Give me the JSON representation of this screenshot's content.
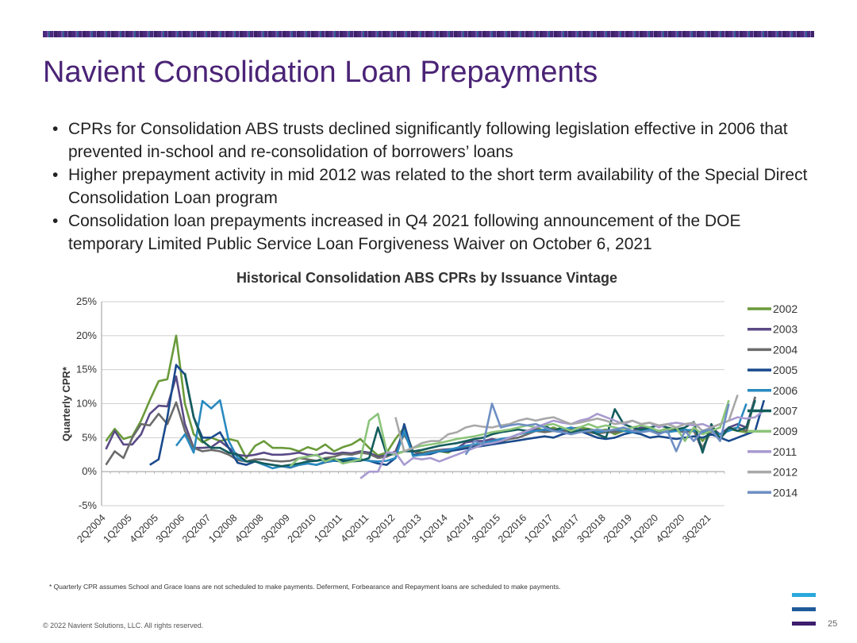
{
  "slide": {
    "title": "Navient Consolidation Loan Prepayments",
    "bullets": [
      "CPRs for Consolidation ABS trusts declined significantly following legislation effective in 2006 that prevented in-school and re-consolidation of borrowers’ loans",
      "Higher prepayment activity in mid 2012 was related to the short term availability of the Special Direct Consolidation Loan program",
      "Consolidation loan prepayments increased in Q4 2021 following announcement of the DOE temporary Limited Public Service Loan Forgiveness Waiver on October 6, 2021"
    ],
    "footnote": "* Quarterly CPR assumes School and Grace loans are not scheduled to make payments. Deferment, Forbearance and Repayment loans are scheduled to make payments.",
    "copyright": "© 2022 Navient Solutions, LLC. All rights reserved.",
    "page_number": "25",
    "brand_colors": {
      "title": "#4a2376",
      "logo_top": "#29a8dc",
      "logo_mid": "#1f5a9a",
      "logo_bottom": "#3d1e6d"
    }
  },
  "chart_data": {
    "type": "line",
    "title": "Historical Consolidation ABS CPRs by Issuance Vintage",
    "ylabel": "Quarterly CPR*",
    "xlabel": "",
    "ylim": [
      -5,
      25
    ],
    "yticks": [
      -5,
      0,
      5,
      10,
      15,
      20,
      25
    ],
    "ytick_labels": [
      "-5%",
      "0%",
      "5%",
      "10%",
      "15%",
      "20%",
      "25%"
    ],
    "grid": true,
    "legend": "right",
    "x_start": "2Q2004",
    "x_end": "4Q2021",
    "xtick_labels": [
      "2Q2004",
      "1Q2005",
      "4Q2005",
      "3Q2006",
      "2Q2007",
      "1Q2008",
      "4Q2008",
      "3Q2009",
      "2Q2010",
      "1Q2011",
      "4Q2011",
      "3Q2012",
      "2Q2013",
      "1Q2014",
      "4Q2014",
      "3Q2015",
      "2Q2016",
      "1Q2017",
      "4Q2017",
      "3Q2018",
      "2Q2019",
      "1Q2020",
      "4Q2020",
      "3Q2021"
    ],
    "series": [
      {
        "name": "2002",
        "color": "#6a9a3a",
        "start": "2Q2004",
        "values": [
          4.5,
          6.3,
          4.8,
          5.2,
          7.5,
          10.5,
          13.3,
          13.6,
          20.0,
          10.0,
          5.5,
          4.3,
          5.0,
          4.5,
          4.8,
          4.5,
          2.0,
          3.8,
          4.5,
          3.5,
          3.5,
          3.4,
          3.0,
          3.6,
          3.2,
          4.0,
          3.0,
          3.6,
          4.0,
          4.8,
          3.5,
          2.4,
          2.8,
          4.8,
          6.5,
          3.0,
          2.8,
          3.0,
          3.0,
          2.8,
          3.5,
          3.5,
          3.8,
          4.0,
          4.5,
          4.2,
          5.0,
          5.5,
          5.8,
          6.5,
          6.0,
          6.5,
          6.0,
          6.3,
          6.5,
          6.3,
          6.0,
          6.2,
          5.5,
          6.0,
          6.0,
          6.3,
          6.2,
          6.0,
          6.3,
          6.2,
          6.0,
          6.2,
          4.5,
          6.2,
          5.0,
          6.3,
          6.0,
          5.8,
          11.0
        ]
      },
      {
        "name": "2003",
        "color": "#5a4a86",
        "start": "2Q2004",
        "values": [
          3.3,
          6.0,
          4.0,
          4.0,
          5.5,
          8.5,
          9.7,
          9.6,
          14.0,
          7.0,
          3.5,
          3.5,
          3.6,
          4.5,
          3.5,
          2.5,
          2.3,
          2.5,
          2.8,
          2.5,
          2.5,
          2.6,
          2.8,
          2.5,
          2.4,
          2.8,
          2.6,
          2.8,
          2.7,
          3.0,
          2.8,
          2.2,
          2.4,
          3.0,
          6.0,
          3.0,
          2.6,
          3.0,
          3.2,
          3.3,
          3.4,
          4.3,
          4.5,
          4.5,
          4.8,
          4.6,
          5.0,
          5.5,
          6.0,
          6.2,
          6.0,
          6.2,
          6.0,
          6.5,
          6.2,
          6.0,
          5.8,
          6.0,
          6.0,
          6.2,
          6.0,
          6.5,
          6.3,
          6.0,
          6.2,
          6.3,
          6.0,
          6.2,
          3.0,
          6.5,
          5.5,
          6.5,
          7.0,
          6.5,
          11.0
        ]
      },
      {
        "name": "2004",
        "color": "#6b6b6b",
        "start": "2Q2004",
        "values": [
          1.0,
          3.0,
          2.0,
          5.0,
          7.0,
          6.8,
          8.5,
          7.0,
          10.2,
          6.0,
          3.5,
          3.0,
          3.2,
          3.0,
          2.5,
          1.7,
          1.5,
          1.8,
          1.8,
          1.6,
          1.5,
          1.6,
          2.0,
          1.8,
          1.6,
          2.0,
          2.2,
          2.6,
          2.5,
          2.8,
          2.6,
          2.0,
          2.2,
          2.8,
          5.5,
          3.0,
          2.5,
          3.0,
          3.2,
          3.0,
          3.3,
          3.5,
          3.8,
          4.0,
          4.2,
          4.5,
          4.8,
          5.0,
          5.5,
          6.0,
          5.8,
          6.0,
          5.8,
          6.2,
          6.0,
          5.8,
          5.6,
          5.8,
          5.8,
          6.0,
          5.8,
          6.2,
          6.0,
          5.8,
          6.0,
          6.0,
          5.8,
          6.0,
          3.5,
          6.0,
          5.0,
          6.2,
          6.5,
          6.0,
          11.0
        ]
      },
      {
        "name": "2005",
        "color": "#1a4a8c",
        "start": "3Q2005",
        "values": [
          1.0,
          1.8,
          8.0,
          15.7,
          14.3,
          8.0,
          5.0,
          5.0,
          5.8,
          3.5,
          1.3,
          1.0,
          1.5,
          1.2,
          1.0,
          0.8,
          0.6,
          1.0,
          1.2,
          1.0,
          1.4,
          1.6,
          1.5,
          1.8,
          1.8,
          1.6,
          1.2,
          1.0,
          2.0,
          7.0,
          2.5,
          2.5,
          2.6,
          3.0,
          3.0,
          3.2,
          3.4,
          3.6,
          3.8,
          4.0,
          4.2,
          4.4,
          4.6,
          4.8,
          5.0,
          5.2,
          5.0,
          5.5,
          5.8,
          6.0,
          5.5,
          5.0,
          4.8,
          5.0,
          5.5,
          5.8,
          5.5,
          5.0,
          5.2,
          5.0,
          4.8,
          5.0,
          5.2,
          5.0,
          5.5,
          5.0,
          4.5,
          5.0,
          5.5,
          6.0,
          10.5
        ]
      },
      {
        "name": "2006",
        "color": "#2a8ac0",
        "start": "2Q2006",
        "values": [
          3.8,
          5.5,
          2.8,
          10.4,
          9.3,
          10.5,
          4.5,
          2.0,
          1.5,
          1.5,
          1.0,
          0.5,
          0.8,
          0.7,
          1.0,
          1.2,
          1.0,
          1.5,
          1.6,
          1.8,
          2.0,
          1.8,
          1.6,
          1.5,
          1.6,
          2.0,
          6.0,
          2.3,
          2.5,
          2.8,
          3.0,
          3.2,
          3.5,
          3.8,
          4.0,
          4.2,
          4.5,
          4.8,
          5.0,
          5.5,
          5.8,
          6.0,
          6.2,
          6.0,
          6.2,
          6.5,
          6.0,
          6.2,
          5.8,
          6.0,
          6.2,
          6.0,
          5.8,
          6.0,
          6.2,
          6.0,
          5.8,
          6.0,
          6.2,
          6.0,
          5.8,
          6.0,
          5.5,
          6.0,
          6.5,
          10.0
        ]
      },
      {
        "name": "2007",
        "color": "#145c5c",
        "start": "3Q2006",
        "values": [
          14.5,
          8.0,
          4.5,
          3.5,
          3.5,
          2.8,
          2.5,
          1.5,
          1.5,
          1.2,
          1.0,
          0.8,
          1.0,
          1.2,
          1.5,
          1.6,
          1.8,
          1.8,
          1.7,
          1.5,
          1.6,
          2.0,
          6.5,
          2.5,
          2.6,
          3.0,
          3.0,
          3.2,
          3.5,
          3.8,
          4.0,
          4.2,
          4.5,
          4.8,
          5.0,
          5.5,
          5.8,
          6.0,
          6.2,
          6.0,
          6.5,
          6.8,
          6.0,
          6.5,
          5.8,
          6.0,
          6.2,
          5.5,
          5.0,
          9.2,
          7.0,
          6.5,
          6.2,
          6.5,
          6.8,
          6.5,
          6.2,
          6.5,
          7.3,
          2.8,
          7.0,
          4.8,
          6.5,
          6.0,
          6.5,
          10.5
        ]
      },
      {
        "name": "2009",
        "color": "#8cc47a",
        "start": "3Q2009",
        "values": [
          0.8,
          2.0,
          2.2,
          2.5,
          1.5,
          2.0,
          1.2,
          1.5,
          1.8,
          7.5,
          8.5,
          3.0,
          2.5,
          3.0,
          3.5,
          3.8,
          4.0,
          4.2,
          4.5,
          4.8,
          5.0,
          5.2,
          5.5,
          5.8,
          6.0,
          6.2,
          6.5,
          6.8,
          6.5,
          6.8,
          7.0,
          6.5,
          6.0,
          6.5,
          7.0,
          6.5,
          6.8,
          6.5,
          6.2,
          6.5,
          6.8,
          6.5,
          6.0,
          6.2,
          6.5,
          4.5,
          6.5,
          5.5,
          6.0,
          6.5,
          10.5
        ]
      },
      {
        "name": "2011",
        "color": "#a89ad0",
        "start": "3Q2011",
        "values": [
          -1.0,
          0.0,
          0.0,
          2.8,
          2.8,
          1.0,
          2.0,
          1.8,
          2.0,
          1.5,
          2.0,
          2.5,
          3.0,
          3.5,
          4.0,
          4.2,
          4.5,
          5.0,
          5.5,
          6.0,
          6.5,
          7.0,
          7.5,
          7.2,
          7.0,
          7.5,
          7.8,
          8.5,
          8.0,
          7.5,
          7.0,
          7.5,
          7.0,
          7.2,
          6.5,
          7.0,
          7.2,
          7.0,
          6.8,
          7.0,
          6.5,
          7.0,
          7.5,
          8.0,
          7.8,
          8.0,
          9.0
        ]
      },
      {
        "name": "2012",
        "color": "#a8a8a8",
        "start": "3Q2012",
        "values": [
          8.0,
          3.0,
          3.5,
          4.2,
          4.5,
          4.5,
          5.5,
          5.8,
          6.5,
          6.8,
          6.6,
          6.5,
          6.8,
          7.0,
          7.5,
          7.8,
          7.5,
          7.8,
          8.0,
          7.5,
          7.0,
          7.2,
          7.5,
          7.8,
          7.5,
          7.0,
          7.2,
          7.5,
          7.0,
          7.2,
          6.8,
          7.0,
          6.5,
          7.0,
          7.2,
          6.0,
          6.5,
          7.0,
          7.5,
          11.3
        ]
      },
      {
        "name": "2014",
        "color": "#6f8fc4",
        "start": "3Q2014",
        "values": [
          2.5,
          4.5,
          4.0,
          10.0,
          6.5,
          6.8,
          7.0,
          6.8,
          7.0,
          6.5,
          6.0,
          5.8,
          5.5,
          5.8,
          6.0,
          6.2,
          6.0,
          6.2,
          6.5,
          6.0,
          5.8,
          6.0,
          5.5,
          6.0,
          3.0,
          6.0,
          4.5,
          6.0,
          6.2,
          4.5,
          10.0
        ]
      }
    ]
  }
}
